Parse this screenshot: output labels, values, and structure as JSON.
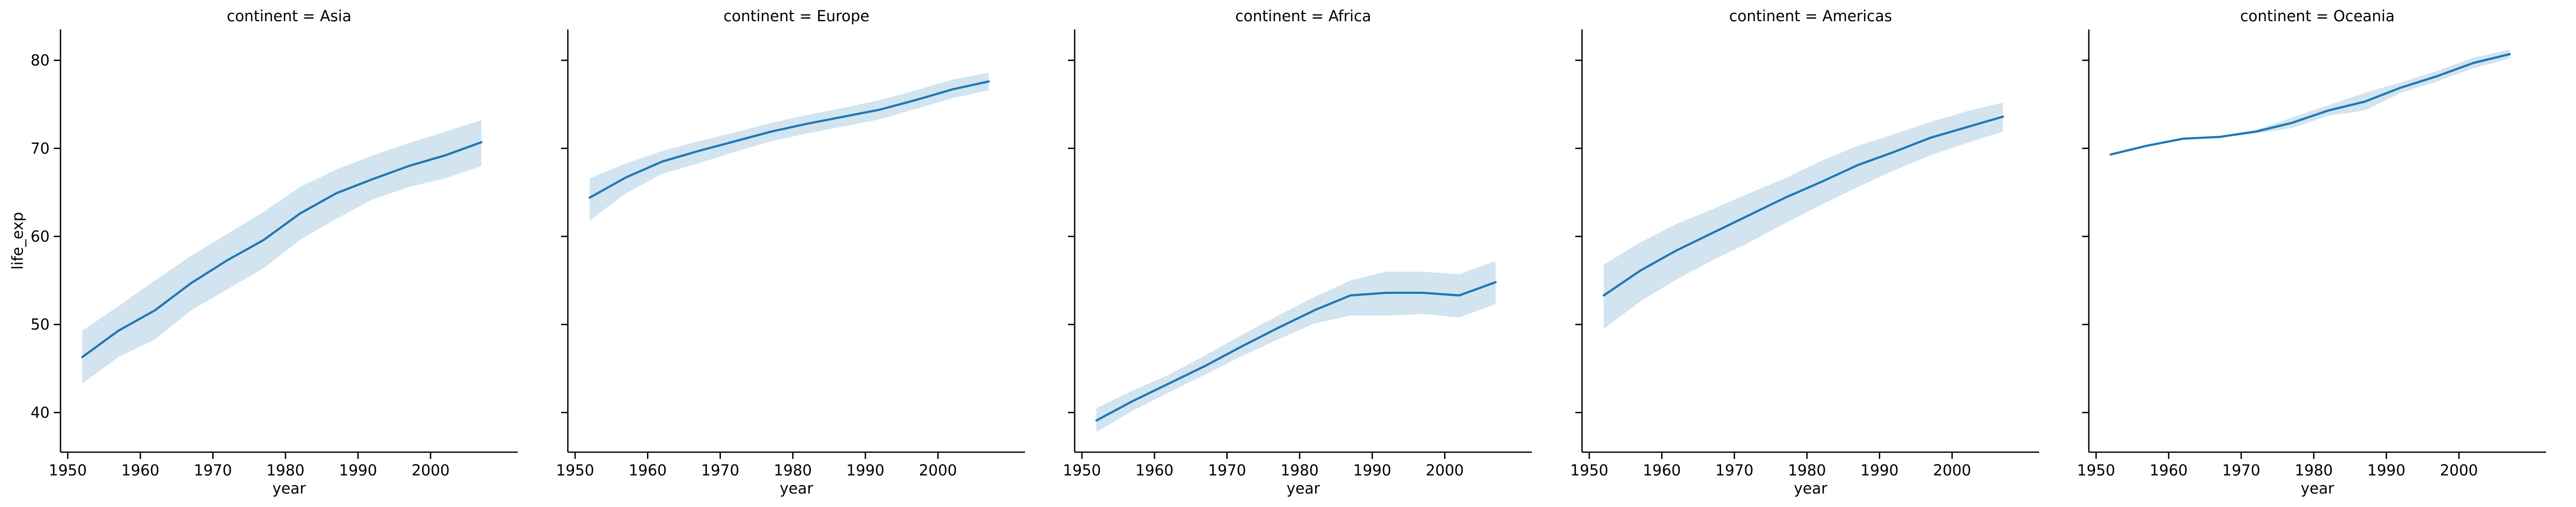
{
  "chart_data": {
    "type": "line",
    "facet_label": "continent",
    "xlabel": "year",
    "ylabel": "life_exp",
    "xlim": [
      1949,
      2012
    ],
    "ylim": [
      35.5,
      83.5
    ],
    "xticks": [
      1950,
      1960,
      1970,
      1980,
      1990,
      2000
    ],
    "yticks": [
      40,
      50,
      60,
      70,
      80
    ],
    "shared_y": true,
    "colors": {
      "line": "#1f77b4",
      "band": "#1f77b4",
      "band_opacity": 0.2
    },
    "x": [
      1952,
      1957,
      1962,
      1967,
      1972,
      1977,
      1982,
      1987,
      1992,
      1997,
      2002,
      2007
    ],
    "panels": [
      {
        "title": "continent = Asia",
        "name": "Asia",
        "mean": [
          46.3,
          49.3,
          51.6,
          54.7,
          57.3,
          59.6,
          62.6,
          64.9,
          66.5,
          68.0,
          69.2,
          70.7
        ],
        "lower": [
          43.3,
          46.3,
          48.3,
          51.6,
          54.0,
          56.4,
          59.6,
          62.0,
          64.2,
          65.6,
          66.6,
          68.0
        ],
        "upper": [
          49.3,
          52.1,
          55.0,
          57.8,
          60.3,
          62.8,
          65.6,
          67.6,
          69.2,
          70.6,
          71.9,
          73.2
        ]
      },
      {
        "title": "continent = Europe",
        "name": "Europe",
        "mean": [
          64.4,
          66.7,
          68.5,
          69.7,
          70.8,
          71.9,
          72.8,
          73.6,
          74.4,
          75.5,
          76.7,
          77.6
        ],
        "lower": [
          61.8,
          64.9,
          67.1,
          68.3,
          69.6,
          70.8,
          71.7,
          72.5,
          73.3,
          74.5,
          75.7,
          76.6
        ],
        "upper": [
          66.6,
          68.3,
          69.7,
          70.8,
          71.8,
          72.9,
          73.8,
          74.6,
          75.5,
          76.6,
          77.8,
          78.6
        ]
      },
      {
        "title": "continent = Africa",
        "name": "Africa",
        "mean": [
          39.1,
          41.3,
          43.3,
          45.3,
          47.5,
          49.6,
          51.6,
          53.3,
          53.6,
          53.6,
          53.3,
          54.8
        ],
        "lower": [
          37.8,
          40.2,
          42.3,
          44.3,
          46.4,
          48.3,
          50.1,
          51.0,
          51.0,
          51.2,
          50.8,
          52.3
        ],
        "upper": [
          40.5,
          42.5,
          44.3,
          46.5,
          48.8,
          51.0,
          53.1,
          55.0,
          56.0,
          56.0,
          55.7,
          57.2
        ]
      },
      {
        "title": "continent = Americas",
        "name": "Americas",
        "mean": [
          53.3,
          56.1,
          58.4,
          60.4,
          62.4,
          64.4,
          66.2,
          68.1,
          69.6,
          71.2,
          72.4,
          73.6
        ],
        "lower": [
          49.5,
          52.6,
          55.1,
          57.3,
          59.3,
          61.5,
          63.6,
          65.6,
          67.5,
          69.2,
          70.6,
          71.9
        ],
        "upper": [
          56.8,
          59.3,
          61.4,
          63.1,
          64.9,
          66.6,
          68.6,
          70.3,
          71.6,
          73.0,
          74.2,
          75.2
        ]
      },
      {
        "title": "continent = Oceania",
        "name": "Oceania",
        "mean": [
          69.3,
          70.3,
          71.1,
          71.3,
          71.9,
          72.9,
          74.3,
          75.3,
          76.9,
          78.2,
          79.7,
          80.7
        ],
        "lower": [
          69.2,
          70.2,
          71.0,
          71.2,
          71.7,
          72.3,
          73.7,
          74.3,
          76.3,
          77.6,
          79.1,
          80.2
        ],
        "upper": [
          69.4,
          70.4,
          71.2,
          71.4,
          72.1,
          73.5,
          74.9,
          76.3,
          77.5,
          78.8,
          80.3,
          81.2
        ]
      }
    ]
  }
}
